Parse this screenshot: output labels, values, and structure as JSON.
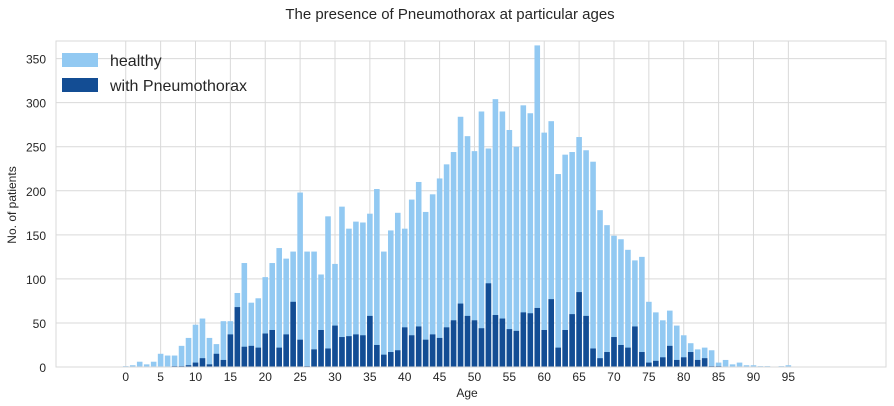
{
  "chart_data": {
    "type": "bar",
    "title": "The presence of Pneumothorax at particular ages",
    "xlabel": "Age",
    "ylabel": "No. of patients",
    "xlim": [
      -10,
      109
    ],
    "ylim": [
      0,
      370
    ],
    "xticks": [
      0,
      5,
      10,
      15,
      20,
      25,
      30,
      35,
      40,
      45,
      50,
      55,
      60,
      65,
      70,
      75,
      80,
      85,
      90,
      95
    ],
    "yticks": [
      0,
      50,
      100,
      150,
      200,
      250,
      300,
      350
    ],
    "grid": true,
    "legend_position": "top-left",
    "x": [
      0,
      1,
      2,
      3,
      4,
      5,
      6,
      7,
      8,
      9,
      10,
      11,
      12,
      13,
      14,
      15,
      16,
      17,
      18,
      19,
      20,
      21,
      22,
      23,
      24,
      25,
      26,
      27,
      28,
      29,
      30,
      31,
      32,
      33,
      34,
      35,
      36,
      37,
      38,
      39,
      40,
      41,
      42,
      43,
      44,
      45,
      46,
      47,
      48,
      49,
      50,
      51,
      52,
      53,
      54,
      55,
      56,
      57,
      58,
      59,
      60,
      61,
      62,
      63,
      64,
      65,
      66,
      67,
      68,
      69,
      70,
      71,
      72,
      73,
      74,
      75,
      76,
      77,
      78,
      79,
      80,
      81,
      82,
      83,
      84,
      85,
      86,
      87,
      88,
      89,
      90,
      91,
      92,
      93,
      94,
      95
    ],
    "series": [
      {
        "name": "healthy",
        "color": "#92c9f2",
        "values": [
          1,
          2,
          6,
          3,
          6,
          15,
          13,
          13,
          24,
          33,
          48,
          55,
          33,
          26,
          52,
          52,
          84,
          118,
          73,
          78,
          102,
          118,
          135,
          123,
          131,
          198,
          131,
          131,
          105,
          171,
          117,
          182,
          157,
          165,
          164,
          174,
          202,
          131,
          155,
          175,
          157,
          190,
          210,
          176,
          196,
          214,
          230,
          244,
          284,
          262,
          245,
          290,
          248,
          304,
          290,
          269,
          250,
          297,
          288,
          365,
          266,
          279,
          219,
          241,
          244,
          261,
          246,
          233,
          178,
          161,
          149,
          145,
          133,
          121,
          125,
          74,
          62,
          53,
          64,
          47,
          36,
          27,
          20,
          22,
          19,
          5,
          8,
          3,
          5,
          2,
          2,
          1,
          1,
          0,
          1,
          2
        ]
      },
      {
        "name": "with Pneumothorax",
        "color": "#134d94",
        "values": [
          0,
          0,
          0,
          0,
          0,
          0,
          0,
          1,
          1,
          2,
          5,
          10,
          3,
          15,
          8,
          37,
          68,
          23,
          24,
          22,
          38,
          42,
          22,
          37,
          74,
          31,
          1,
          20,
          42,
          21,
          47,
          34,
          35,
          37,
          36,
          58,
          25,
          14,
          17,
          19,
          45,
          36,
          46,
          31,
          37,
          33,
          45,
          53,
          72,
          58,
          53,
          44,
          95,
          59,
          55,
          43,
          41,
          62,
          61,
          67,
          42,
          77,
          22,
          42,
          60,
          85,
          58,
          21,
          10,
          17,
          34,
          25,
          22,
          46,
          17,
          5,
          7,
          11,
          24,
          8,
          11,
          17,
          8,
          10,
          1,
          1,
          0,
          0,
          0,
          0,
          0,
          0,
          0,
          0,
          0,
          0
        ]
      }
    ]
  }
}
